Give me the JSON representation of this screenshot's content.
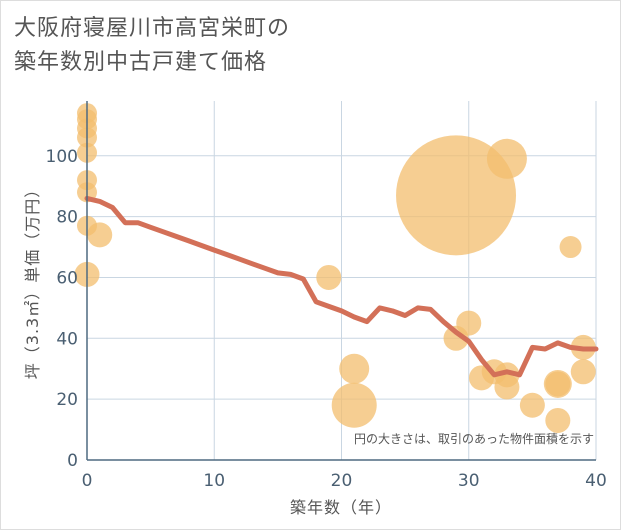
{
  "title_line1": "大阪府寝屋川市高宮栄町の",
  "title_line2": "築年数別中古戸建て価格",
  "chart_data": {
    "type": "scatter",
    "title": "大阪府寝屋川市高宮栄町の築年数別中古戸建て価格",
    "xlabel": "築年数（年）",
    "ylabel": "坪（3.3㎡）単価（万円）",
    "xlim": [
      0,
      40
    ],
    "ylim": [
      0,
      118
    ],
    "xticks": [
      0,
      10,
      20,
      30,
      40
    ],
    "yticks": [
      0,
      20,
      40,
      60,
      80,
      100
    ],
    "grid": true,
    "annotation": "円の大きさは、取引のあった物件面積を示す",
    "bubble_color": "#f3be6d",
    "line_color": "#d37058",
    "scatter": [
      {
        "x": 0,
        "y": 114,
        "size": 2
      },
      {
        "x": 0,
        "y": 112,
        "size": 2
      },
      {
        "x": 0,
        "y": 109,
        "size": 2
      },
      {
        "x": 0,
        "y": 106,
        "size": 2
      },
      {
        "x": 0,
        "y": 101,
        "size": 2
      },
      {
        "x": 0,
        "y": 92,
        "size": 2
      },
      {
        "x": 0,
        "y": 88,
        "size": 2
      },
      {
        "x": 0,
        "y": 77,
        "size": 2
      },
      {
        "x": 0,
        "y": 61,
        "size": 2.5
      },
      {
        "x": 1,
        "y": 74,
        "size": 2.5
      },
      {
        "x": 19,
        "y": 60,
        "size": 2.5
      },
      {
        "x": 21,
        "y": 30,
        "size": 3
      },
      {
        "x": 21,
        "y": 18,
        "size": 4.5
      },
      {
        "x": 29,
        "y": 87,
        "size": 12
      },
      {
        "x": 29,
        "y": 40,
        "size": 2.5
      },
      {
        "x": 30,
        "y": 45,
        "size": 2.5
      },
      {
        "x": 31,
        "y": 27,
        "size": 2.5
      },
      {
        "x": 32,
        "y": 29,
        "size": 2.5
      },
      {
        "x": 33,
        "y": 99,
        "size": 4
      },
      {
        "x": 33,
        "y": 28,
        "size": 2.5
      },
      {
        "x": 33,
        "y": 24,
        "size": 2.5
      },
      {
        "x": 35,
        "y": 18,
        "size": 2.5
      },
      {
        "x": 37,
        "y": 25,
        "size": 2.8
      },
      {
        "x": 37,
        "y": 25,
        "size": 2.5
      },
      {
        "x": 37,
        "y": 13,
        "size": 2.5
      },
      {
        "x": 38,
        "y": 70,
        "size": 2.2
      },
      {
        "x": 39,
        "y": 37,
        "size": 2.5
      },
      {
        "x": 39,
        "y": 29,
        "size": 2.5
      }
    ],
    "line": {
      "x": [
        0,
        1,
        2,
        3,
        4,
        5,
        6,
        7,
        8,
        9,
        10,
        11,
        12,
        13,
        14,
        15,
        16,
        17,
        18,
        19,
        20,
        21,
        22,
        23,
        24,
        25,
        26,
        27,
        28,
        29,
        30,
        31,
        32,
        33,
        34,
        35,
        36,
        37,
        38,
        39,
        40
      ],
      "y": [
        86,
        85,
        83,
        78,
        78,
        76.5,
        75,
        73.5,
        72,
        70.5,
        69,
        67.5,
        66,
        64.5,
        63,
        61.5,
        61,
        59.5,
        52,
        50.5,
        49,
        47,
        45.5,
        50,
        49,
        47.5,
        50,
        49.5,
        45.5,
        42,
        39,
        33,
        28,
        29,
        28,
        37,
        36.5,
        38.5,
        37,
        36.5,
        36.5
      ]
    }
  }
}
